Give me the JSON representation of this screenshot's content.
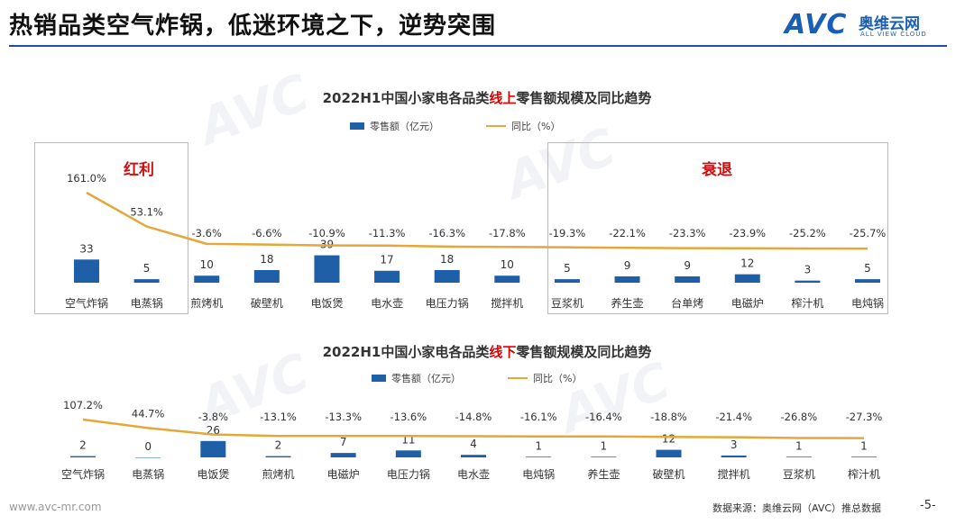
{
  "header": {
    "title": "热销品类空气炸锅，低迷环境之下，逆势突围",
    "logo_main": "AVC",
    "logo_cn": "奥维云网",
    "logo_en": "ALL VIEW CLOUD"
  },
  "colors": {
    "bar": "#1f5fa8",
    "line": "#e3a73a",
    "accent_red": "#d01010"
  },
  "online": {
    "title_pre": "2022H1中国小家电各品类",
    "title_hl": "线上",
    "title_post": "零售额规模及同比趋势",
    "legend_bar": "零售额（亿元）",
    "legend_line": "同比（%）",
    "box_left_label": "红利",
    "box_right_label": "衰退"
  },
  "offline": {
    "title_pre": "2022H1中国小家电各品类",
    "title_hl": "线下",
    "title_post": "零售额规模及同比趋势",
    "legend_bar": "零售额（亿元）",
    "legend_line": "同比（%）"
  },
  "chart_data": [
    {
      "type": "bar",
      "title": "2022H1中国小家电各品类线上零售额规模及同比趋势",
      "categories": [
        "空气炸锅",
        "电蒸锅",
        "煎烤机",
        "破壁机",
        "电饭煲",
        "电水壶",
        "电压力锅",
        "搅拌机",
        "豆浆机",
        "养生壶",
        "台单烤",
        "电磁炉",
        "榨汁机",
        "电炖锅"
      ],
      "series": [
        {
          "name": "零售额（亿元）",
          "type": "bar",
          "values": [
            33,
            5,
            10,
            18,
            39,
            17,
            18,
            10,
            5,
            9,
            9,
            12,
            3,
            5
          ]
        },
        {
          "name": "同比（%）",
          "type": "line",
          "values": [
            161.0,
            53.1,
            -3.6,
            -6.6,
            -10.9,
            -11.3,
            -16.3,
            -17.8,
            -19.3,
            -22.1,
            -23.3,
            -23.9,
            -25.2,
            -25.7
          ],
          "labels": [
            "161.0%",
            "53.1%",
            "-3.6%",
            "-6.6%",
            "-10.9%",
            "-11.3%",
            "-16.3%",
            "-17.8%",
            "-19.3%",
            "-22.1%",
            "-23.3%",
            "-23.9%",
            "-25.2%",
            "-25.7%"
          ]
        }
      ]
    },
    {
      "type": "bar",
      "title": "2022H1中国小家电各品类线下零售额规模及同比趋势",
      "categories": [
        "空气炸锅",
        "电蒸锅",
        "电饭煲",
        "煎烤机",
        "电磁炉",
        "电压力锅",
        "电水壶",
        "电炖锅",
        "养生壶",
        "破壁机",
        "搅拌机",
        "豆浆机",
        "榨汁机"
      ],
      "series": [
        {
          "name": "零售额（亿元）",
          "type": "bar",
          "values": [
            2,
            0,
            26,
            2,
            7,
            11,
            4,
            1,
            1,
            12,
            3,
            1,
            1
          ]
        },
        {
          "name": "同比（%）",
          "type": "line",
          "values": [
            107.2,
            44.7,
            -3.8,
            -13.1,
            -13.3,
            -13.6,
            -14.8,
            -16.1,
            -16.4,
            -18.8,
            -21.4,
            -26.8,
            -27.3
          ],
          "labels": [
            "107.2%",
            "44.7%",
            "-3.8%",
            "-13.1%",
            "-13.3%",
            "-13.6%",
            "-14.8%",
            "-16.1%",
            "-16.4%",
            "-18.8%",
            "-21.4%",
            "-26.8%",
            "-27.3%"
          ]
        }
      ]
    }
  ],
  "footer": {
    "url": "www.avc-mr.com",
    "source": "数据来源：奥维云网（AVC）推总数据",
    "page": "-5-"
  }
}
